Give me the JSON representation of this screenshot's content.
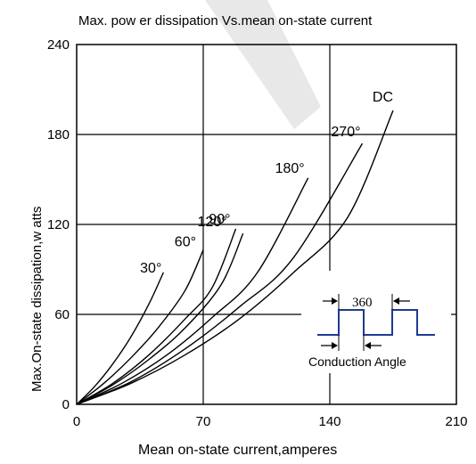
{
  "chart_data": {
    "type": "line",
    "title": "Max. pow er dissipation Vs.mean on-state current",
    "xlabel": "Mean  on-state current,amperes",
    "ylabel": "Max.On-state dissipation,w atts",
    "xlim": [
      0,
      210
    ],
    "ylim": [
      0,
      240
    ],
    "x_ticks": [
      "0",
      "70",
      "140",
      "210"
    ],
    "y_ticks": [
      "0",
      "60",
      "120",
      "180",
      "240"
    ],
    "grid": true,
    "series": [
      {
        "name": "30°",
        "x": [
          0,
          10,
          20,
          30,
          40,
          48
        ],
        "y": [
          0,
          12,
          27,
          45,
          67,
          88
        ]
      },
      {
        "name": "60°",
        "x": [
          0,
          15,
          30,
          45,
          60,
          70
        ],
        "y": [
          0,
          14,
          31,
          51,
          76,
          103
        ]
      },
      {
        "name": "90°",
        "x": [
          0,
          20,
          40,
          60,
          75,
          88
        ],
        "y": [
          0,
          14,
          33,
          57,
          78,
          117
        ]
      },
      {
        "name": "120°",
        "x": [
          0,
          20,
          40,
          60,
          80,
          92
        ],
        "y": [
          0,
          13,
          30,
          51,
          80,
          114
        ]
      },
      {
        "name": "180°",
        "x": [
          0,
          25,
          50,
          75,
          100,
          128
        ],
        "y": [
          0,
          14,
          33,
          58,
          88,
          151
        ]
      },
      {
        "name": "270°",
        "x": [
          0,
          30,
          60,
          90,
          120,
          158
        ],
        "y": [
          0,
          15,
          37,
          65,
          98,
          174
        ]
      },
      {
        "name": "DC",
        "x": [
          0,
          30,
          60,
          90,
          120,
          150,
          175
        ],
        "y": [
          0,
          14,
          33,
          57,
          88,
          125,
          196
        ]
      }
    ],
    "inset": {
      "label_top": "360",
      "label_bottom": "Conduction Angle",
      "waveform_color": "#1f3a93"
    }
  }
}
